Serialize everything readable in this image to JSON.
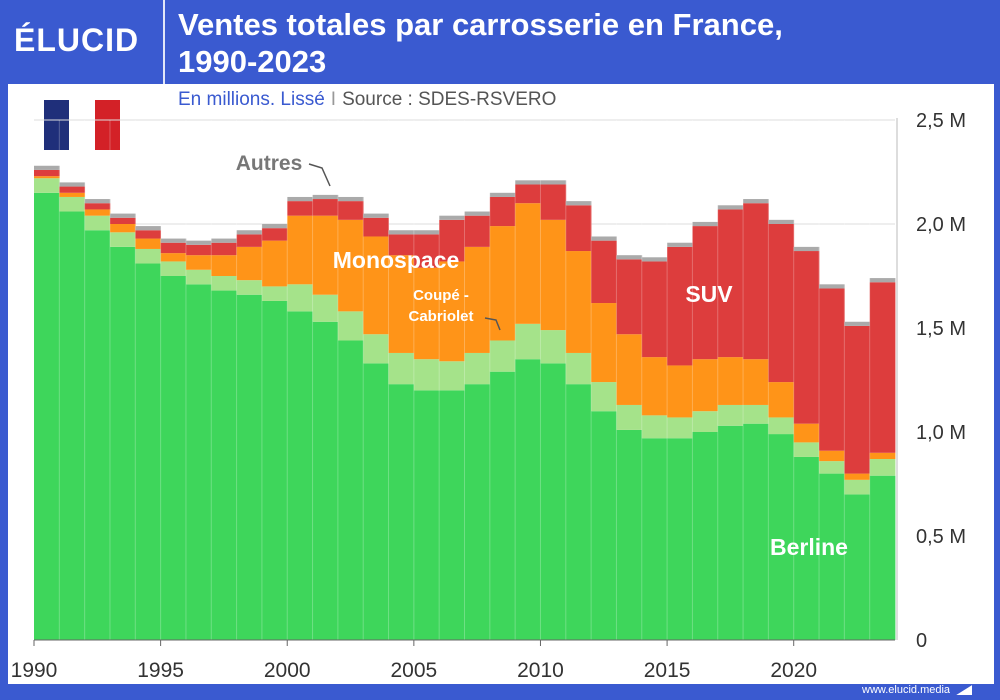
{
  "header": {
    "logo": "ÉLUCID",
    "title_line1": "Ventes totales par carrosserie en France,",
    "title_line2": "1990-2023"
  },
  "subtitle": {
    "units": "En millions. Lissé",
    "separator": "I",
    "source": "Source : SDES-RSVERO"
  },
  "footer": {
    "url": "www.elucid.media"
  },
  "flag": {
    "colors": [
      "#1f2f7a",
      "#ffffff",
      "#d32127"
    ]
  },
  "chart_data": {
    "type": "area",
    "stacked": true,
    "x": [
      1990,
      1991,
      1992,
      1993,
      1994,
      1995,
      1996,
      1997,
      1998,
      1999,
      2000,
      2001,
      2002,
      2003,
      2004,
      2005,
      2006,
      2007,
      2008,
      2009,
      2010,
      2011,
      2012,
      2013,
      2014,
      2015,
      2016,
      2017,
      2018,
      2019,
      2020,
      2021,
      2022,
      2023
    ],
    "series": [
      {
        "name": "Berline",
        "color": "#3ed65b",
        "values": [
          2.15,
          2.06,
          1.97,
          1.89,
          1.81,
          1.75,
          1.71,
          1.68,
          1.66,
          1.63,
          1.58,
          1.53,
          1.44,
          1.33,
          1.23,
          1.2,
          1.2,
          1.23,
          1.29,
          1.35,
          1.33,
          1.23,
          1.1,
          1.01,
          0.97,
          0.97,
          1.0,
          1.03,
          1.04,
          0.99,
          0.88,
          0.8,
          0.7,
          0.79
        ]
      },
      {
        "name": "Coupé - Cabriolet",
        "color": "#a5e38a",
        "values": [
          0.07,
          0.07,
          0.07,
          0.07,
          0.07,
          0.07,
          0.07,
          0.07,
          0.07,
          0.07,
          0.13,
          0.13,
          0.14,
          0.14,
          0.15,
          0.15,
          0.14,
          0.15,
          0.15,
          0.17,
          0.16,
          0.15,
          0.14,
          0.12,
          0.11,
          0.1,
          0.1,
          0.1,
          0.09,
          0.08,
          0.07,
          0.06,
          0.07,
          0.08
        ]
      },
      {
        "name": "Monospace",
        "color": "#ff9418",
        "values": [
          0.01,
          0.02,
          0.03,
          0.04,
          0.05,
          0.04,
          0.07,
          0.1,
          0.16,
          0.22,
          0.33,
          0.38,
          0.44,
          0.47,
          0.47,
          0.44,
          0.48,
          0.51,
          0.55,
          0.58,
          0.53,
          0.49,
          0.38,
          0.34,
          0.28,
          0.25,
          0.25,
          0.23,
          0.22,
          0.17,
          0.09,
          0.05,
          0.03,
          0.03
        ]
      },
      {
        "name": "SUV",
        "color": "#dd3d3d",
        "values": [
          0.03,
          0.03,
          0.03,
          0.03,
          0.04,
          0.05,
          0.05,
          0.06,
          0.06,
          0.06,
          0.07,
          0.08,
          0.09,
          0.09,
          0.1,
          0.16,
          0.2,
          0.15,
          0.14,
          0.09,
          0.17,
          0.22,
          0.3,
          0.36,
          0.46,
          0.57,
          0.64,
          0.71,
          0.75,
          0.76,
          0.83,
          0.78,
          0.71,
          0.82
        ]
      },
      {
        "name": "Autres",
        "color": "#aaaaaa",
        "values": [
          0.02,
          0.02,
          0.02,
          0.02,
          0.02,
          0.02,
          0.02,
          0.02,
          0.02,
          0.02,
          0.02,
          0.02,
          0.02,
          0.02,
          0.02,
          0.02,
          0.02,
          0.02,
          0.02,
          0.02,
          0.02,
          0.02,
          0.02,
          0.02,
          0.02,
          0.02,
          0.02,
          0.02,
          0.02,
          0.02,
          0.02,
          0.02,
          0.02,
          0.02
        ]
      }
    ],
    "ylim": [
      0,
      2.5
    ],
    "y_ticks": [
      {
        "value": 0,
        "label": "0"
      },
      {
        "value": 0.5,
        "label": "0,5 M"
      },
      {
        "value": 1.0,
        "label": "1,0 M"
      },
      {
        "value": 1.5,
        "label": "1,5 M"
      },
      {
        "value": 2.0,
        "label": "2,0 M"
      },
      {
        "value": 2.5,
        "label": "2,5 M"
      }
    ],
    "x_ticks": [
      1990,
      1995,
      2000,
      2005,
      2010,
      2015,
      2020
    ],
    "series_labels": [
      {
        "series": "Berline",
        "text": "Berline"
      },
      {
        "series": "Monospace",
        "text": "Monospace"
      },
      {
        "series": "SUV",
        "text": "SUV"
      },
      {
        "series": "Coupé - Cabriolet",
        "lines": [
          "Coupé -",
          "Cabriolet"
        ]
      },
      {
        "series": "Autres",
        "text": "Autres"
      }
    ],
    "grid": true,
    "y_axis_side": "right"
  }
}
